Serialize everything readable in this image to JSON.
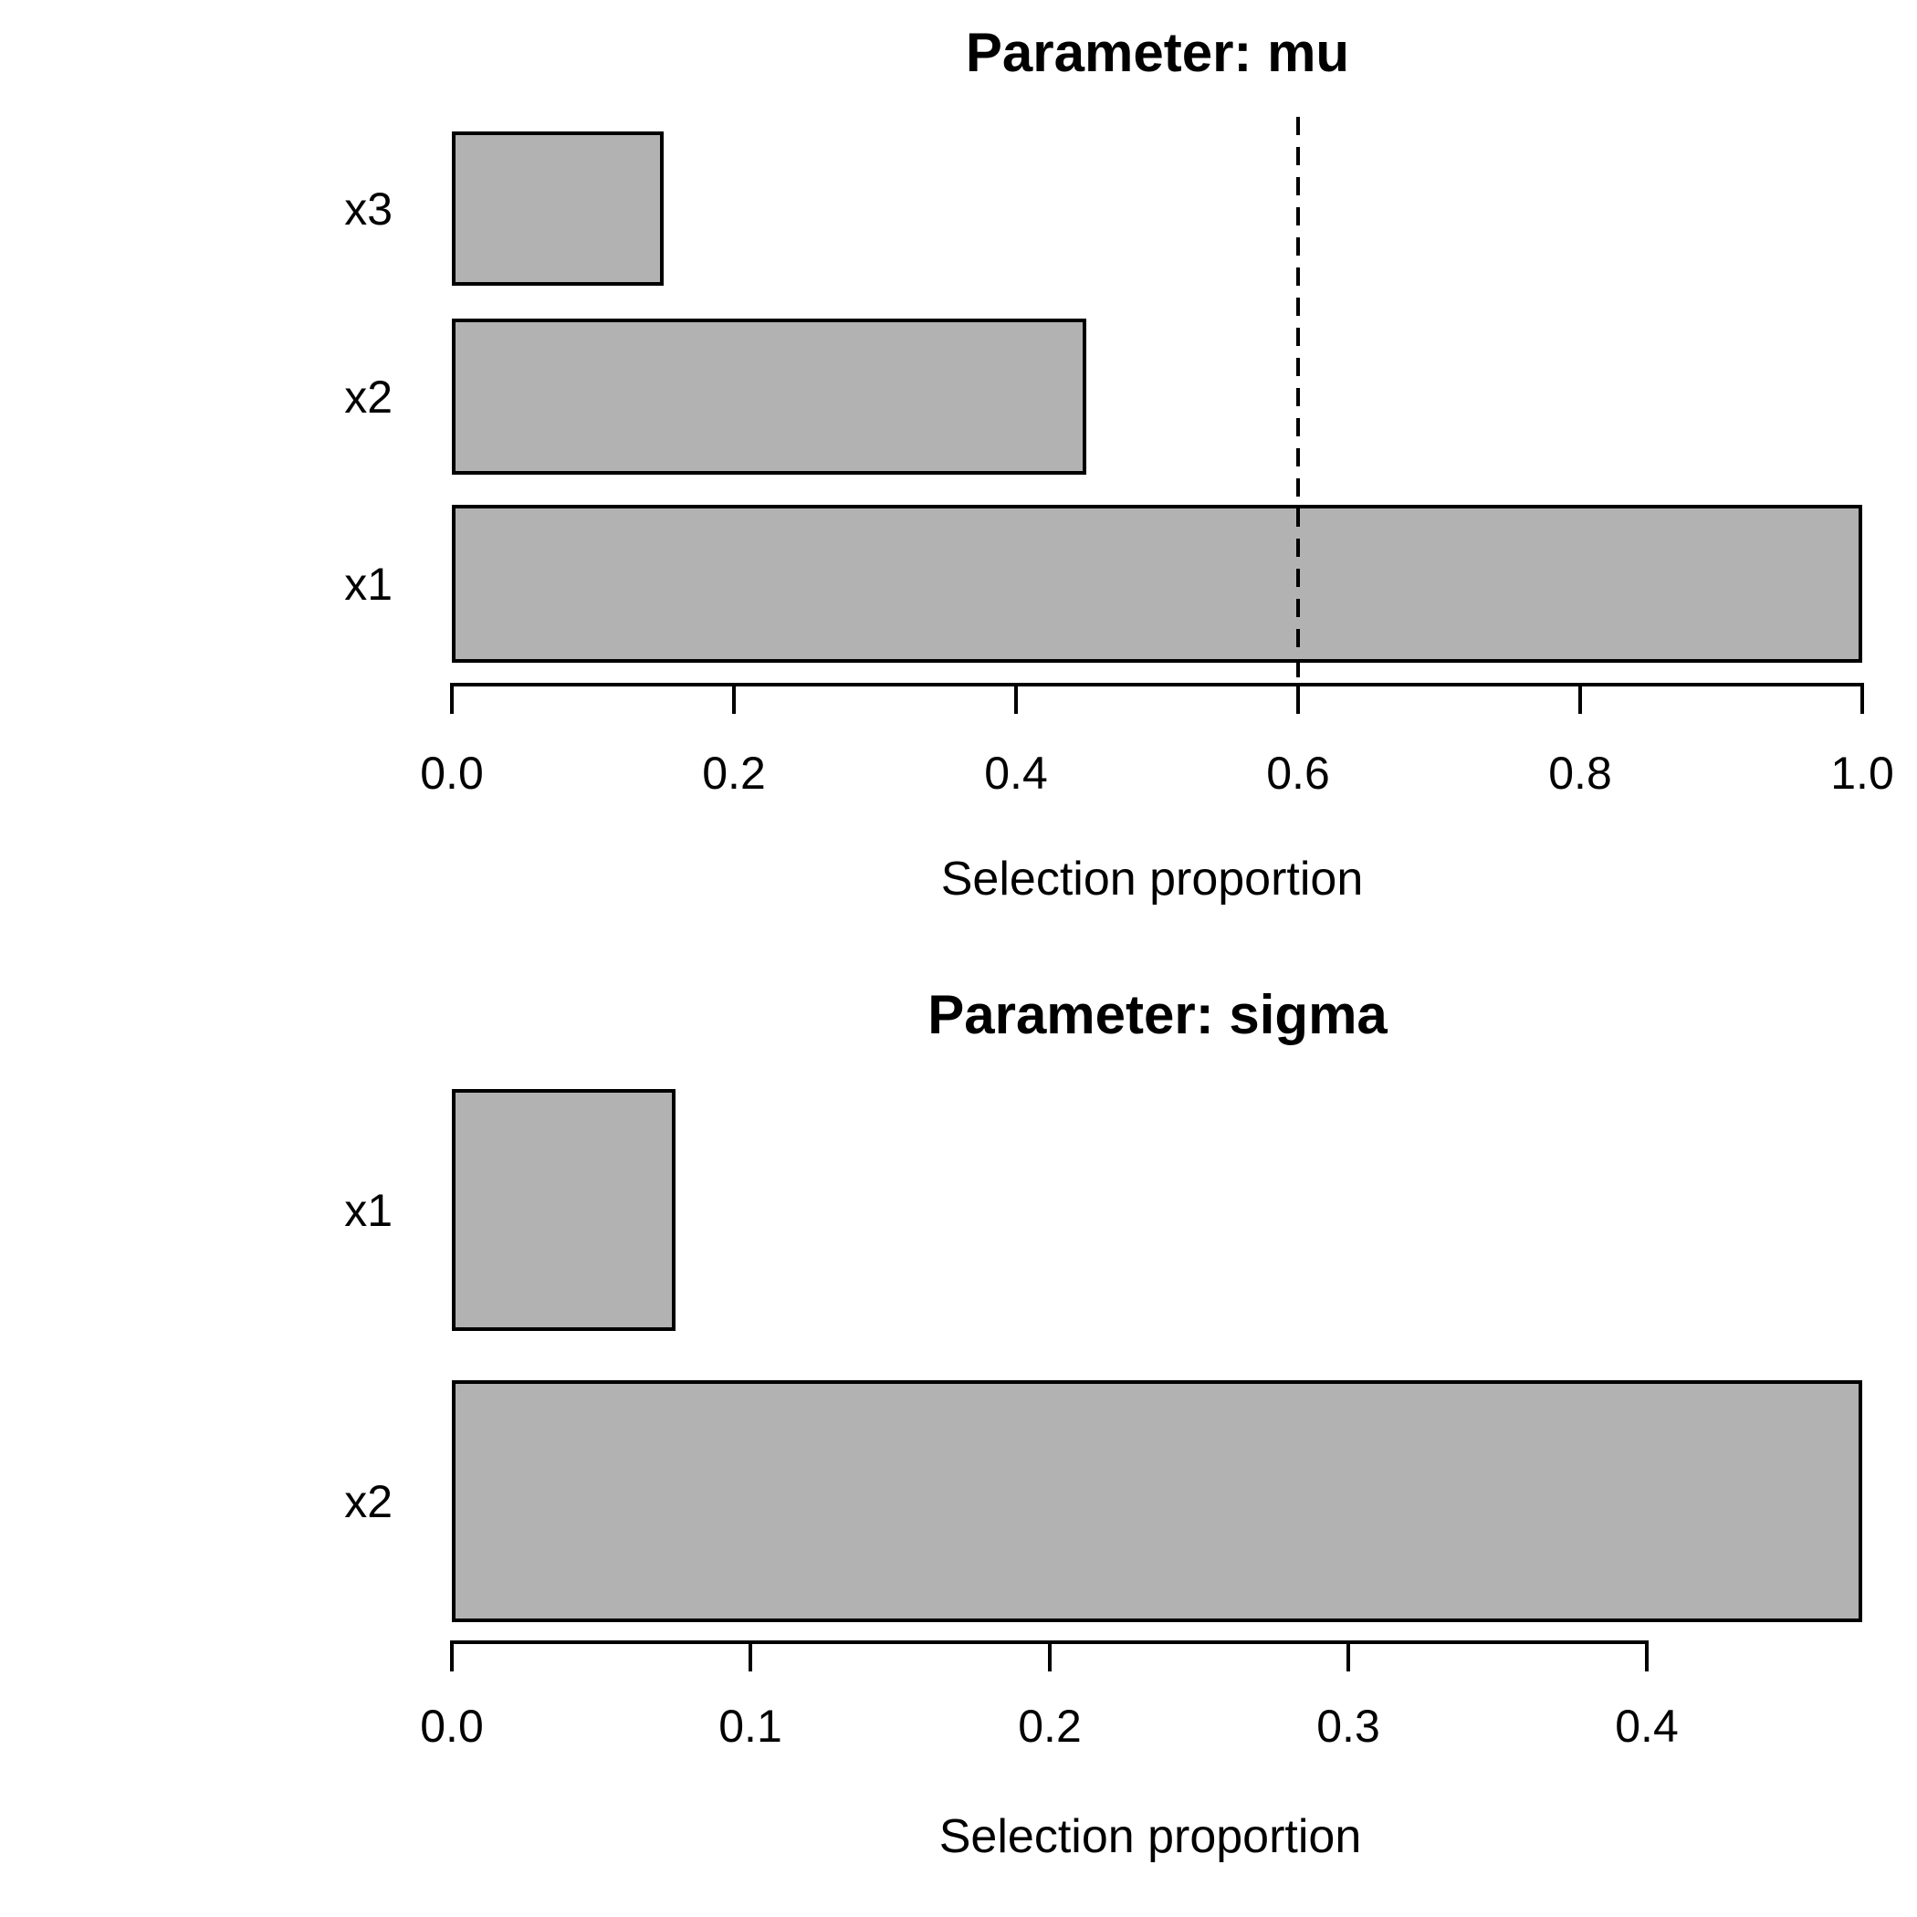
{
  "figure": {
    "background": "#ffffff",
    "bar_fill": "#b2b2b2",
    "bar_border": "#000000",
    "text_color": "#000000"
  },
  "chart_data": [
    {
      "type": "bar",
      "orientation": "horizontal",
      "title": "Parameter: mu",
      "xlabel": "Selection proportion",
      "categories": [
        "x3",
        "x2",
        "x1"
      ],
      "values": [
        0.15,
        0.45,
        1.0
      ],
      "xlim": [
        0.0,
        1.0
      ],
      "xticks": [
        0.0,
        0.2,
        0.4,
        0.6,
        0.8,
        1.0
      ],
      "xtick_labels": [
        "0.0",
        "0.2",
        "0.4",
        "0.6",
        "0.8",
        "1.0"
      ],
      "grid": false,
      "threshold_line": {
        "x": 0.6,
        "style": "dashed",
        "color": "#000000"
      }
    },
    {
      "type": "bar",
      "orientation": "horizontal",
      "title": "Parameter: sigma",
      "xlabel": "Selection proportion",
      "categories": [
        "x1",
        "x2"
      ],
      "values": [
        0.075,
        0.472
      ],
      "xlim": [
        0.0,
        0.4
      ],
      "xticks": [
        0.0,
        0.1,
        0.2,
        0.3,
        0.4
      ],
      "xtick_labels": [
        "0.0",
        "0.1",
        "0.2",
        "0.3",
        "0.4"
      ],
      "grid": false,
      "threshold_line": null
    }
  ]
}
